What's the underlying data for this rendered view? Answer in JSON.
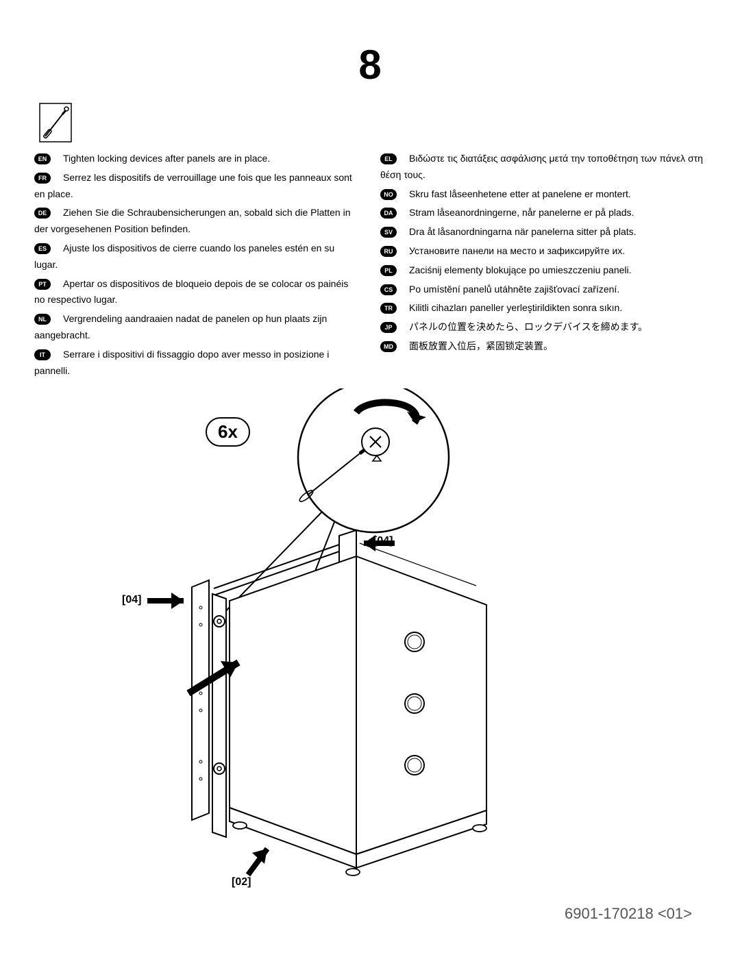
{
  "step_number": "8",
  "quantity_label": "6x",
  "part_labels": {
    "top_right": "[04]",
    "left": "[04]",
    "bottom": "[02]"
  },
  "footer": "6901-170218 <01>",
  "instructions_left": [
    {
      "code": "EN",
      "text": "Tighten locking  devices after panels are in place."
    },
    {
      "code": "FR",
      "text": "Serrez les dispositifs de verrouillage une fois que les panneaux sont en place."
    },
    {
      "code": "DE",
      "text": "Ziehen Sie die Schraubensicherungen an, sobald sich die Platten in der vorgesehenen Position befinden."
    },
    {
      "code": "ES",
      "text": "Ajuste los dispositivos de cierre cuando los paneles estén en su lugar."
    },
    {
      "code": "PT",
      "text": "Apertar os dispositivos de bloqueio depois de se colocar os painéis no respectivo lugar."
    },
    {
      "code": "NL",
      "text": "Vergrendeling aandraaien nadat de panelen op hun plaats zijn aangebracht."
    },
    {
      "code": "IT",
      "text": "Serrare i dispositivi di fissaggio dopo aver messo in posizione i pannelli."
    }
  ],
  "instructions_right": [
    {
      "code": "EL",
      "text": "Βιδώστε τις διατάξεις ασφάλισης μετά την τοποθέτηση των πάνελ στη θέση τους."
    },
    {
      "code": "NO",
      "text": "Skru fast låseenhetene etter at panelene er montert."
    },
    {
      "code": "DA",
      "text": "Stram låseanordningerne, når panelerne er på plads."
    },
    {
      "code": "SV",
      "text": "Dra åt låsanordningarna när panelerna sitter på plats."
    },
    {
      "code": "RU",
      "text": "Установите панели на место и зафиксируйте их."
    },
    {
      "code": "PL",
      "text": "Zaciśnij elementy blokujące po umieszczeniu paneli."
    },
    {
      "code": "CS",
      "text": "Po umístění panelů utáhněte zajišťovací zařízení."
    },
    {
      "code": "TR",
      "text": "Kilitli cihazları paneller yerleştirildikten sonra sıkın."
    },
    {
      "code": "JP",
      "text": "パネルの位置を決めたら、ロックデバイスを締めます。"
    },
    {
      "code": "MD",
      "text": "面板放置入位后，紧固锁定装置。"
    }
  ],
  "colors": {
    "text": "#000000",
    "bg": "#ffffff",
    "footer": "#555555"
  }
}
